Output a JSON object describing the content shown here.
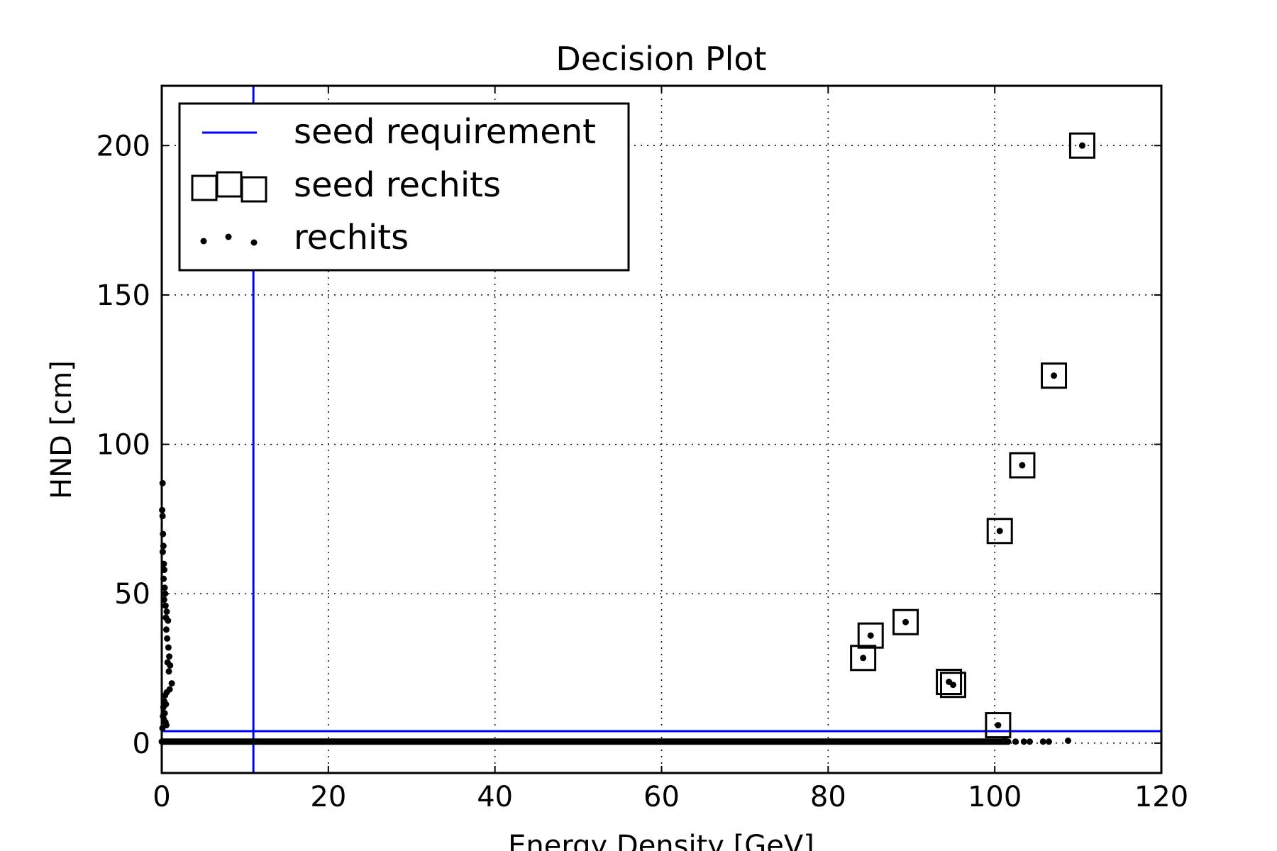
{
  "chart_data": {
    "type": "scatter",
    "title": "Decision Plot",
    "xlabel": "Energy Density [GeV]",
    "ylabel": "HND [cm]",
    "xlim": [
      0,
      120
    ],
    "ylim": [
      -10,
      220
    ],
    "xticks": [
      0,
      20,
      40,
      60,
      80,
      100,
      120
    ],
    "yticks": [
      0,
      50,
      100,
      150,
      200
    ],
    "grid": true,
    "legend_position": "top-left",
    "legend": [
      {
        "label": "seed requirement",
        "marker": "line"
      },
      {
        "label": "seed rechits",
        "marker": "square"
      },
      {
        "label": "rechits",
        "marker": "dot"
      }
    ],
    "seed_requirement": {
      "energy_density": 11,
      "hnd": 4,
      "color": "#0000ff"
    },
    "seed_rechits": {
      "x": [
        110.5,
        107.1,
        103.3,
        100.6,
        89.3,
        85.1,
        84.2,
        94.5,
        95.0,
        100.4
      ],
      "y": [
        200,
        123,
        93,
        71,
        40.5,
        36,
        28.5,
        20.5,
        19.5,
        6
      ]
    },
    "rechits": {
      "x": [
        0.1,
        0.05,
        0.1,
        0.15,
        0.2,
        0.12,
        0.25,
        0.3,
        0.22,
        0.35,
        0.4,
        0.28,
        0.45,
        0.6,
        0.5,
        0.75,
        0.55,
        0.65,
        0.8,
        0.9,
        0.7,
        1.0,
        0.85,
        1.2,
        0.95,
        0.6,
        0.4,
        0.3,
        0.5,
        0.2,
        0.35,
        0.15,
        0.25,
        0.45,
        0.55,
        0.08
      ],
      "y": [
        87,
        78,
        76,
        70,
        66,
        64,
        60,
        58,
        55,
        52,
        50,
        48,
        46,
        44,
        42,
        41,
        38,
        35,
        32,
        29,
        27,
        26,
        24,
        20,
        18,
        17,
        16,
        14,
        13,
        12,
        10,
        9,
        8,
        7,
        6,
        5
      ],
      "baseline": {
        "y": 0.5,
        "x_from": 0,
        "x_to": 101.5
      },
      "tail": {
        "x": [
          102.5,
          103.5,
          104.2,
          105.8,
          106.5,
          108.8,
          101.2,
          101.6
        ],
        "y": [
          0.5,
          0.5,
          0.5,
          0.5,
          0.5,
          0.8,
          0.8,
          0.5
        ]
      }
    },
    "colors": {
      "seed_requirement": "#0000ff",
      "markers": "#000000"
    }
  }
}
